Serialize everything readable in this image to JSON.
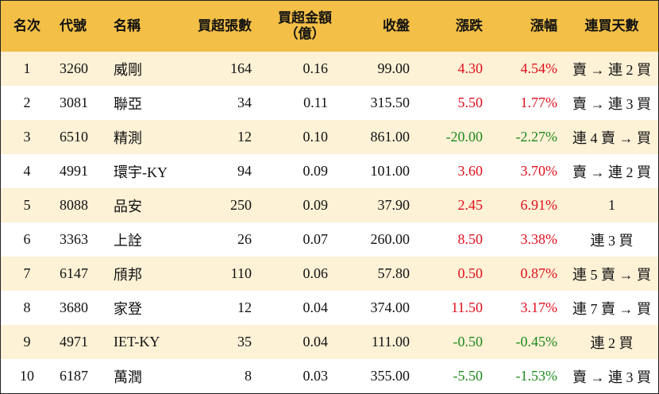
{
  "headers": {
    "rank": "名次",
    "code": "代號",
    "name": "名稱",
    "buy_lots": "買超張數",
    "buy_amount_line1": "買超金額",
    "buy_amount_line2": "（億）",
    "close": "收盤",
    "change": "漲跌",
    "change_pct": "漲幅",
    "streak": "連買天數"
  },
  "rows": [
    {
      "rank": "1",
      "code": "3260",
      "name": "威剛",
      "buy_lots": "164",
      "buy_amount": "0.16",
      "close": "99.00",
      "change": "4.30",
      "change_pct": "4.54%",
      "streak": "賣 → 連 2 買",
      "dir": "pos"
    },
    {
      "rank": "2",
      "code": "3081",
      "name": "聯亞",
      "buy_lots": "34",
      "buy_amount": "0.11",
      "close": "315.50",
      "change": "5.50",
      "change_pct": "1.77%",
      "streak": "賣 → 連 3 買",
      "dir": "pos"
    },
    {
      "rank": "3",
      "code": "6510",
      "name": "精測",
      "buy_lots": "12",
      "buy_amount": "0.10",
      "close": "861.00",
      "change": "-20.00",
      "change_pct": "-2.27%",
      "streak": "連 4 賣 → 買",
      "dir": "neg"
    },
    {
      "rank": "4",
      "code": "4991",
      "name": "環宇-KY",
      "buy_lots": "94",
      "buy_amount": "0.09",
      "close": "101.00",
      "change": "3.60",
      "change_pct": "3.70%",
      "streak": "賣 → 連 2 買",
      "dir": "pos"
    },
    {
      "rank": "5",
      "code": "8088",
      "name": "品安",
      "buy_lots": "250",
      "buy_amount": "0.09",
      "close": "37.90",
      "change": "2.45",
      "change_pct": "6.91%",
      "streak": "1",
      "dir": "pos"
    },
    {
      "rank": "6",
      "code": "3363",
      "name": "上詮",
      "buy_lots": "26",
      "buy_amount": "0.07",
      "close": "260.00",
      "change": "8.50",
      "change_pct": "3.38%",
      "streak": "連 3 買",
      "dir": "pos"
    },
    {
      "rank": "7",
      "code": "6147",
      "name": "頎邦",
      "buy_lots": "110",
      "buy_amount": "0.06",
      "close": "57.80",
      "change": "0.50",
      "change_pct": "0.87%",
      "streak": "連 5 賣 → 買",
      "dir": "pos"
    },
    {
      "rank": "8",
      "code": "3680",
      "name": "家登",
      "buy_lots": "12",
      "buy_amount": "0.04",
      "close": "374.00",
      "change": "11.50",
      "change_pct": "3.17%",
      "streak": "連 7 賣 → 買",
      "dir": "pos"
    },
    {
      "rank": "9",
      "code": "4971",
      "name": "IET-KY",
      "buy_lots": "35",
      "buy_amount": "0.04",
      "close": "111.00",
      "change": "-0.50",
      "change_pct": "-0.45%",
      "streak": "連 2 買",
      "dir": "neg"
    },
    {
      "rank": "10",
      "code": "6187",
      "name": "萬潤",
      "buy_lots": "8",
      "buy_amount": "0.03",
      "close": "355.00",
      "change": "-5.50",
      "change_pct": "-1.53%",
      "streak": "賣 → 連 3 買",
      "dir": "neg"
    }
  ],
  "colors": {
    "header_bg": "#f3bf46",
    "odd_row_bg": "#fdf1d6",
    "up": "#e0101e",
    "down": "#1f8a1f"
  }
}
